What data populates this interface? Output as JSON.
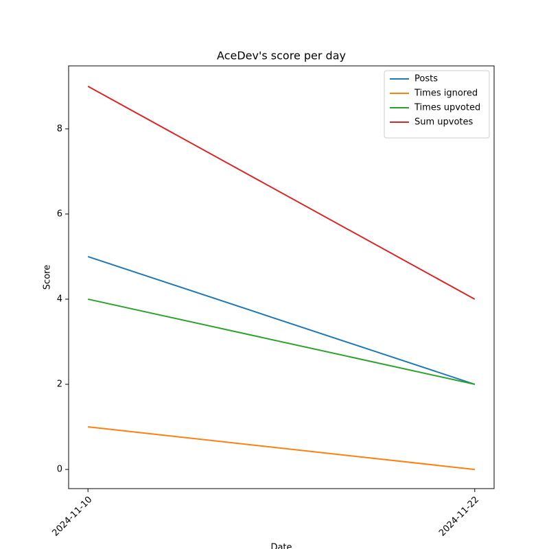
{
  "chart_data": {
    "type": "line",
    "title": "AceDev's score per day",
    "xlabel": "Date",
    "ylabel": "Score",
    "x": [
      "2024-11-10",
      "2024-11-22"
    ],
    "series": [
      {
        "name": "Posts",
        "color": "#1f77b4",
        "values": [
          5,
          2
        ]
      },
      {
        "name": "Times ignored",
        "color": "#ff7f0e",
        "values": [
          1,
          0
        ]
      },
      {
        "name": "Times upvoted",
        "color": "#2ca02c",
        "values": [
          4,
          2
        ]
      },
      {
        "name": "Sum upvotes",
        "color": "#d62728",
        "values": [
          9,
          4
        ]
      }
    ],
    "ylim": [
      -0.45,
      9.48
    ],
    "yticks": [
      0,
      2,
      4,
      6,
      8
    ],
    "grid": false,
    "legend": "upper right"
  }
}
